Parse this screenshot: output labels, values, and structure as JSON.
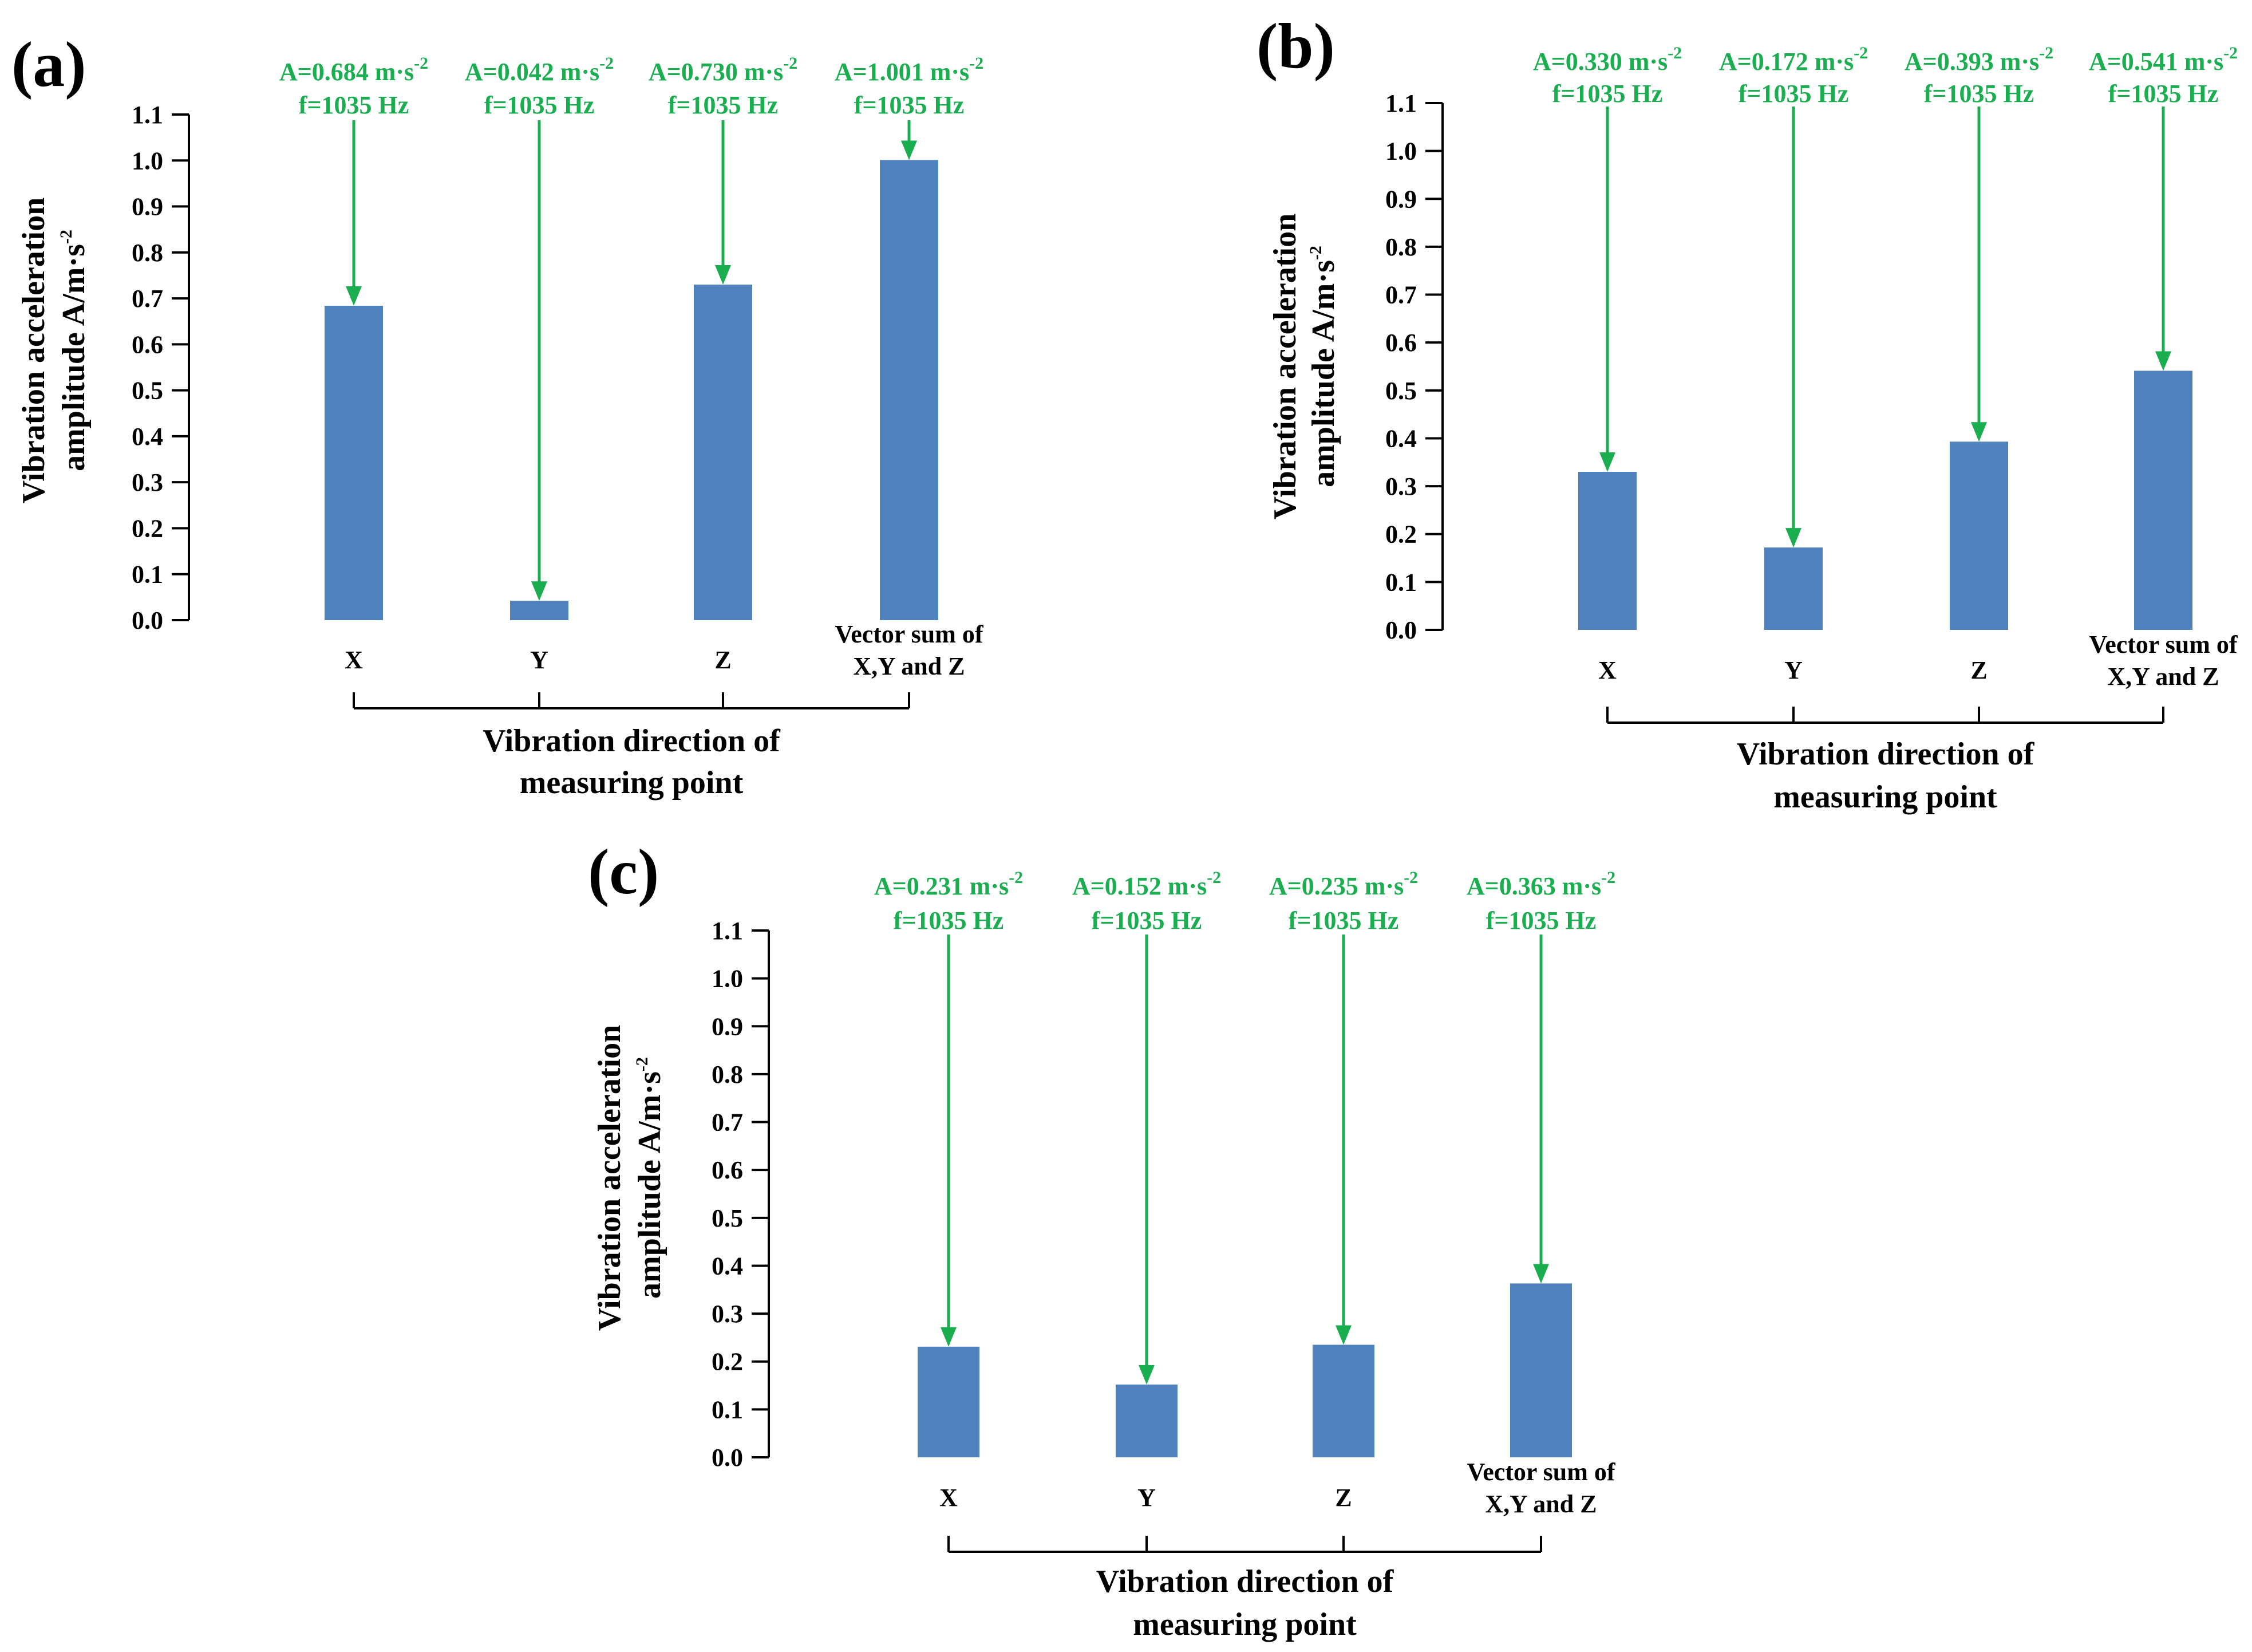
{
  "colors": {
    "bar": "#4f81bd",
    "annotation": "#1aae50",
    "axis": "#000000"
  },
  "chart_data": [
    {
      "type": "bar",
      "panel": "(a)",
      "categories": [
        "X",
        "Y",
        "Z",
        "Vector sum of X,Y and Z"
      ],
      "category_lines": [
        [
          "X"
        ],
        [
          "Y"
        ],
        [
          "Z"
        ],
        [
          "Vector sum of",
          "X,Y and Z"
        ]
      ],
      "values": [
        0.684,
        0.042,
        0.73,
        1.001
      ],
      "annotations": [
        {
          "amplitude": "A=0.684 m·s",
          "exponent": "-2",
          "frequency": "f=1035 Hz"
        },
        {
          "amplitude": "A=0.042 m·s",
          "exponent": "-2",
          "frequency": "f=1035 Hz"
        },
        {
          "amplitude": "A=0.730 m·s",
          "exponent": "-2",
          "frequency": "f=1035 Hz"
        },
        {
          "amplitude": "A=1.001 m·s",
          "exponent": "-2",
          "frequency": "f=1035 Hz"
        }
      ],
      "ylabel_lines": [
        "Vibration acceleration",
        "amplitude A/m·s"
      ],
      "ylabel_exponent": "-2",
      "xlabel_lines": [
        "Vibration direction of",
        "measuring point"
      ],
      "ylim": [
        0,
        1.1
      ],
      "yticks": [
        "0.0",
        "0.1",
        "0.2",
        "0.3",
        "0.4",
        "0.5",
        "0.6",
        "0.7",
        "0.8",
        "0.9",
        "1.0",
        "1.1"
      ]
    },
    {
      "type": "bar",
      "panel": "(b)",
      "categories": [
        "X",
        "Y",
        "Z",
        "Vector sum of X,Y and Z"
      ],
      "category_lines": [
        [
          "X"
        ],
        [
          "Y"
        ],
        [
          "Z"
        ],
        [
          "Vector sum of",
          "X,Y and Z"
        ]
      ],
      "values": [
        0.33,
        0.172,
        0.393,
        0.541
      ],
      "annotations": [
        {
          "amplitude": "A=0.330 m·s",
          "exponent": "-2",
          "frequency": "f=1035 Hz"
        },
        {
          "amplitude": "A=0.172 m·s",
          "exponent": "-2",
          "frequency": "f=1035 Hz"
        },
        {
          "amplitude": "A=0.393 m·s",
          "exponent": "-2",
          "frequency": "f=1035 Hz"
        },
        {
          "amplitude": "A=0.541 m·s",
          "exponent": "-2",
          "frequency": "f=1035 Hz"
        }
      ],
      "ylabel_lines": [
        "Vibration acceleration",
        "amplitude A/m·s"
      ],
      "ylabel_exponent": "-2",
      "xlabel_lines": [
        "Vibration direction of",
        "measuring point"
      ],
      "ylim": [
        0,
        1.1
      ],
      "yticks": [
        "0.0",
        "0.1",
        "0.2",
        "0.3",
        "0.4",
        "0.5",
        "0.6",
        "0.7",
        "0.8",
        "0.9",
        "1.0",
        "1.1"
      ]
    },
    {
      "type": "bar",
      "panel": "(c)",
      "categories": [
        "X",
        "Y",
        "Z",
        "Vector sum of X,Y and Z"
      ],
      "category_lines": [
        [
          "X"
        ],
        [
          "Y"
        ],
        [
          "Z"
        ],
        [
          "Vector sum of",
          "X,Y and Z"
        ]
      ],
      "values": [
        0.231,
        0.152,
        0.235,
        0.363
      ],
      "annotations": [
        {
          "amplitude": "A=0.231 m·s",
          "exponent": "-2",
          "frequency": "f=1035 Hz"
        },
        {
          "amplitude": "A=0.152 m·s",
          "exponent": "-2",
          "frequency": "f=1035 Hz"
        },
        {
          "amplitude": "A=0.235 m·s",
          "exponent": "-2",
          "frequency": "f=1035 Hz"
        },
        {
          "amplitude": "A=0.363 m·s",
          "exponent": "-2",
          "frequency": "f=1035 Hz"
        }
      ],
      "ylabel_lines": [
        "Vibration acceleration",
        "amplitude A/m·s"
      ],
      "ylabel_exponent": "-2",
      "xlabel_lines": [
        "Vibration direction of",
        "measuring point"
      ],
      "ylim": [
        0,
        1.1
      ],
      "yticks": [
        "0.0",
        "0.1",
        "0.2",
        "0.3",
        "0.4",
        "0.5",
        "0.6",
        "0.7",
        "0.8",
        "0.9",
        "1.0",
        "1.1"
      ]
    }
  ]
}
